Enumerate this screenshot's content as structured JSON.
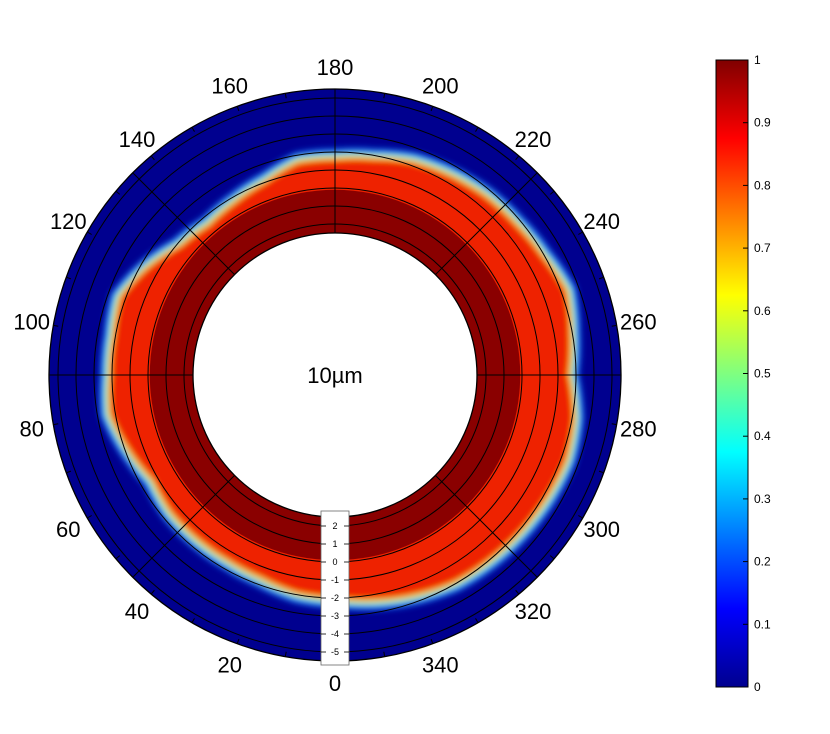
{
  "chart_data": {
    "type": "heatmap",
    "subtype": "polar-annulus",
    "center_label": "10µm",
    "angular_ticks": [
      "0",
      "20",
      "40",
      "60",
      "80",
      "100",
      "120",
      "140",
      "160",
      "180",
      "200",
      "220",
      "240",
      "260",
      "280",
      "300",
      "320",
      "340"
    ],
    "angular_orientation": "0 at bottom, increasing counter-clockwise",
    "radial_scale_labels": [
      "2",
      "1",
      "0",
      "-1",
      "-2",
      "-3",
      "-4",
      "-5"
    ],
    "radial_range": [
      -5.5,
      2.5
    ],
    "inner_hole_radius": 2.5,
    "colorbar": {
      "colormap": "jet",
      "range": [
        0,
        1
      ],
      "ticks": [
        "0",
        "0.1",
        "0.2",
        "0.3",
        "0.4",
        "0.5",
        "0.6",
        "0.7",
        "0.8",
        "0.9",
        "1"
      ]
    },
    "boundary_profile": {
      "description": "radial coordinate of the outer edge of the high-value (red) band, by angle in degrees",
      "angles": [
        0,
        10,
        20,
        30,
        40,
        50,
        60,
        70,
        80,
        90,
        100,
        110,
        120,
        130,
        140,
        150,
        160,
        170,
        180,
        190,
        200,
        210,
        220,
        230,
        240,
        250,
        260,
        270,
        280,
        290,
        300,
        310,
        320,
        330,
        340,
        350
      ],
      "edge_r": [
        -2.0,
        -1.9,
        -1.6,
        -1.5,
        -1.5,
        -1.5,
        -1.3,
        -1.8,
        -2.3,
        -2.1,
        -2.1,
        -2.3,
        -1.6,
        -0.8,
        -0.5,
        -0.7,
        -1.0,
        -1.6,
        -1.6,
        -1.8,
        -2.2,
        -2.4,
        -2.6,
        -2.7,
        -2.9,
        -3.3,
        -2.9,
        -2.6,
        -3.1,
        -3.3,
        -3.2,
        -3.1,
        -3.0,
        -2.9,
        -2.6,
        -2.3
      ]
    },
    "grid": "on",
    "legend": "colorbar-right"
  }
}
